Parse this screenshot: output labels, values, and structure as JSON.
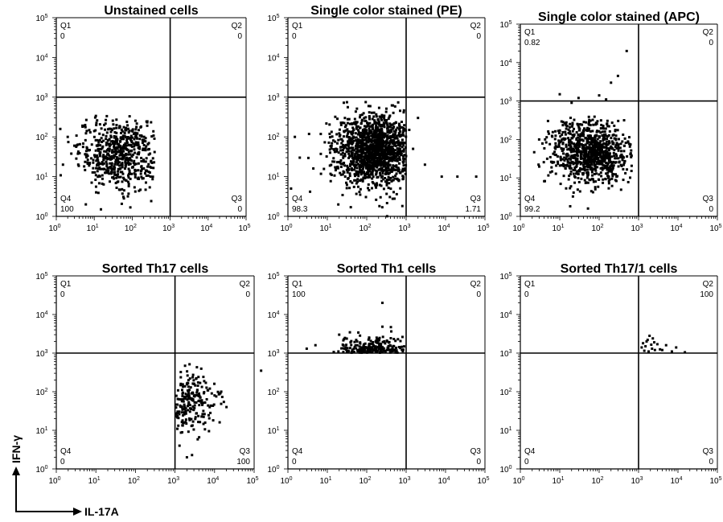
{
  "axis_indicator": {
    "x_label": "IL-17A",
    "y_label": "IFN-γ"
  },
  "tick_labels": [
    "0",
    "1",
    "2",
    "3",
    "4",
    "5"
  ],
  "tick_base": "10",
  "chart_data": [
    {
      "type": "scatter",
      "title": "Unstained cells",
      "xscale": "log",
      "yscale": "log",
      "xlim": [
        1,
        100000
      ],
      "ylim": [
        1,
        100000
      ],
      "gate": [
        1000,
        1000
      ],
      "quadrants": {
        "Q1": "0",
        "Q2": "0",
        "Q3": "0",
        "Q4": "100"
      },
      "clouds": [
        {
          "cx": 50,
          "cy": 40,
          "sx": 0.55,
          "sy": 0.45,
          "n": 600,
          "xmax": 400,
          "ymax": 350,
          "xmin": 1.2,
          "ymin": 1.0
        }
      ],
      "extra_points": [
        [
          2,
          100
        ],
        [
          3,
          60
        ],
        [
          1.5,
          20
        ],
        [
          6,
          2
        ],
        [
          15,
          1.5
        ]
      ]
    },
    {
      "type": "scatter",
      "title": "Single color stained (PE)",
      "xscale": "log",
      "yscale": "log",
      "xlim": [
        1,
        100000
      ],
      "ylim": [
        1,
        100000
      ],
      "gate": [
        1000,
        1000
      ],
      "quadrants": {
        "Q1": "0",
        "Q2": "0",
        "Q3": "1.71",
        "Q4": "98.3"
      },
      "clouds": [
        {
          "cx": 150,
          "cy": 45,
          "sx": 0.5,
          "sy": 0.45,
          "n": 1400,
          "xmax": 1000,
          "ymax": 800,
          "xmin": 1.0,
          "ymin": 1.0
        }
      ],
      "extra_points": [
        [
          1500,
          50
        ],
        [
          3000,
          20
        ],
        [
          8000,
          10
        ],
        [
          20000,
          10
        ],
        [
          60000,
          10
        ],
        [
          2000,
          300
        ],
        [
          1200,
          150
        ],
        [
          1.5,
          100
        ],
        [
          2,
          30
        ],
        [
          1.2,
          5
        ]
      ]
    },
    {
      "type": "scatter",
      "title": "Single color stained (APC)",
      "xscale": "log",
      "yscale": "log",
      "xlim": [
        1,
        100000
      ],
      "ylim": [
        1,
        100000
      ],
      "gate": [
        1000,
        1000
      ],
      "quadrants": {
        "Q1": "0.82",
        "Q2": "0",
        "Q3": "0",
        "Q4": "99.2"
      },
      "clouds": [
        {
          "cx": 60,
          "cy": 45,
          "sx": 0.5,
          "sy": 0.42,
          "n": 900,
          "xmax": 700,
          "ymax": 400,
          "xmin": 1.0,
          "ymin": 1.0
        }
      ],
      "extra_points": [
        [
          10,
          1500
        ],
        [
          30,
          1200
        ],
        [
          200,
          3000
        ],
        [
          300,
          4500
        ],
        [
          500,
          20000
        ],
        [
          100,
          1400
        ],
        [
          20,
          900
        ],
        [
          150,
          1100
        ],
        [
          3,
          100
        ]
      ]
    },
    {
      "type": "scatter",
      "title": "Sorted Th17 cells",
      "xscale": "log",
      "yscale": "log",
      "xlim": [
        1,
        100000
      ],
      "ylim": [
        1,
        100000
      ],
      "gate": [
        1000,
        1000
      ],
      "quadrants": {
        "Q1": "0",
        "Q2": "0",
        "Q3": "100",
        "Q4": "0"
      },
      "clouds": [
        {
          "cx": 2500,
          "cy": 50,
          "sx": 0.3,
          "sy": 0.4,
          "n": 220,
          "xmax": 60000,
          "ymax": 800,
          "xmin": 1050,
          "ymin": 2.0
        }
      ],
      "extra_points": [
        [
          150000,
          350
        ],
        [
          20000,
          40
        ],
        [
          2000,
          2
        ],
        [
          1300,
          4
        ],
        [
          10000,
          80
        ]
      ]
    },
    {
      "type": "scatter",
      "title": "Sorted Th1 cells",
      "xscale": "log",
      "yscale": "log",
      "xlim": [
        1,
        100000
      ],
      "ylim": [
        1,
        100000
      ],
      "gate": [
        1000,
        1000
      ],
      "quadrants": {
        "Q1": "100",
        "Q2": "0",
        "Q3": "0",
        "Q4": "0"
      },
      "clouds": [
        {
          "cx": 150,
          "cy": 1100,
          "sx": 0.45,
          "sy": 0.2,
          "n": 220,
          "xmax": 900,
          "ymax": 6000,
          "xmin": 1.5,
          "ymin": 1020
        }
      ],
      "extra_points": [
        [
          250,
          20000
        ],
        [
          5,
          1600
        ],
        [
          3,
          1300
        ],
        [
          20,
          3000
        ]
      ]
    },
    {
      "type": "scatter",
      "title": "Sorted Th17/1 cells",
      "xscale": "log",
      "yscale": "log",
      "xlim": [
        1,
        100000
      ],
      "ylim": [
        1,
        100000
      ],
      "gate": [
        1000,
        1000
      ],
      "quadrants": {
        "Q1": "0",
        "Q2": "100",
        "Q3": "0",
        "Q4": "0"
      },
      "clouds": [],
      "extra_points": [
        [
          1300,
          1800
        ],
        [
          1500,
          1500
        ],
        [
          1700,
          2200
        ],
        [
          1900,
          2800
        ],
        [
          2200,
          1300
        ],
        [
          2500,
          1900
        ],
        [
          1200,
          1400
        ],
        [
          3000,
          1700
        ],
        [
          4000,
          1200
        ],
        [
          5000,
          1600
        ],
        [
          7000,
          1100
        ],
        [
          9000,
          1400
        ],
        [
          15000,
          1050
        ],
        [
          1800,
          1100
        ],
        [
          2600,
          1200
        ],
        [
          1400,
          1150
        ],
        [
          2100,
          1650
        ],
        [
          3500,
          1250
        ],
        [
          1600,
          2000
        ],
        [
          2300,
          2400
        ]
      ]
    }
  ]
}
